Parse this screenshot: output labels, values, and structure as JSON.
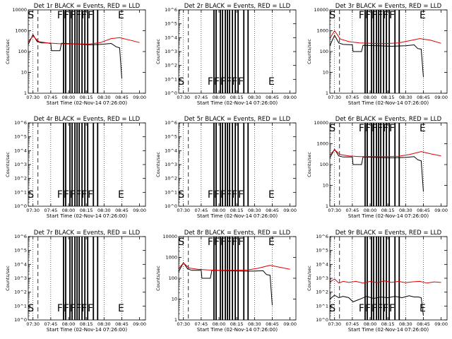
{
  "chart_data": [
    {
      "type": "line",
      "panel": "1r",
      "title": "Det 1r BLACK = Events, RED = LLD",
      "xlabel": "Start Time (02-Nov-14 07:26:00)",
      "ylabel": "Counts/sec",
      "yscale": "log",
      "ylim": [
        1,
        10000
      ],
      "y_ticks": [
        "1",
        "10",
        "100",
        "1000",
        "10000"
      ],
      "x_ticks": [
        "07:30",
        "07:45",
        "08:00",
        "08:15",
        "08:30",
        "08:45",
        "09:00"
      ],
      "markers": [
        "S",
        "F",
        "F",
        "F",
        "F",
        "F",
        "F",
        "E"
      ],
      "series": [
        {
          "color": "#000000",
          "points": [
            [
              7.43,
              210
            ],
            [
              7.5,
              650
            ],
            [
              7.56,
              300
            ],
            [
              7.62,
              260
            ],
            [
              7.7,
              260
            ],
            [
              7.75,
              240
            ],
            [
              7.76,
              110
            ],
            [
              7.88,
              110
            ],
            [
              7.9,
              250
            ],
            [
              8.1,
              230
            ],
            [
              8.3,
              210
            ],
            [
              8.45,
              220
            ],
            [
              8.6,
              245
            ],
            [
              8.67,
              170
            ],
            [
              8.72,
              150
            ],
            [
              8.75,
              5
            ]
          ]
        },
        {
          "color": "#e00000",
          "points": [
            [
              7.43,
              290
            ],
            [
              7.5,
              560
            ],
            [
              7.58,
              300
            ],
            [
              7.7,
              260
            ],
            [
              7.85,
              240
            ],
            [
              8.0,
              230
            ],
            [
              8.15,
              230
            ],
            [
              8.3,
              230
            ],
            [
              8.45,
              270
            ],
            [
              8.6,
              420
            ],
            [
              8.72,
              460
            ],
            [
              8.9,
              330
            ],
            [
              9.0,
              270
            ]
          ]
        }
      ]
    },
    {
      "type": "line",
      "panel": "2r",
      "title": "Det 2r BLACK = Events, RED = LLD",
      "xlabel": "Start Time (02-Nov-14 07:26:00)",
      "ylabel": "Counts/sec",
      "yscale": "log",
      "ylim": [
        1,
        1000000
      ],
      "y_ticks": [
        "10^0",
        "10^1",
        "10^2",
        "10^3",
        "10^4",
        "10^5",
        "10^6"
      ],
      "x_ticks": [
        "07:30",
        "07:45",
        "08:00",
        "08:15",
        "08:30",
        "08:45",
        "09:00"
      ],
      "markers": [
        "S",
        "F",
        "F",
        "F",
        "F",
        "F",
        "F",
        "E"
      ],
      "series": []
    },
    {
      "type": "line",
      "panel": "3r",
      "title": "Det 3r BLACK = Events, RED = LLD",
      "xlabel": "Start Time (02-Nov-14 07:26:00)",
      "ylabel": "Counts/sec",
      "yscale": "log",
      "ylim": [
        1,
        10000
      ],
      "y_ticks": [
        "1",
        "10",
        "100",
        "1000",
        "10000"
      ],
      "x_ticks": [
        "07:30",
        "07:45",
        "08:00",
        "08:15",
        "08:30",
        "08:45",
        "09:00"
      ],
      "markers": [
        "S",
        "F",
        "F",
        "F",
        "F",
        "F",
        "F",
        "E"
      ],
      "series": [
        {
          "color": "#000000",
          "points": [
            [
              7.43,
              180
            ],
            [
              7.5,
              600
            ],
            [
              7.56,
              260
            ],
            [
              7.62,
              220
            ],
            [
              7.75,
              210
            ],
            [
              7.76,
              100
            ],
            [
              7.88,
              100
            ],
            [
              7.9,
              200
            ],
            [
              8.1,
              190
            ],
            [
              8.3,
              180
            ],
            [
              8.5,
              190
            ],
            [
              8.62,
              210
            ],
            [
              8.67,
              140
            ],
            [
              8.72,
              130
            ],
            [
              8.75,
              6
            ]
          ]
        },
        {
          "color": "#e00000",
          "points": [
            [
              7.43,
              400
            ],
            [
              7.5,
              1000
            ],
            [
              7.58,
              400
            ],
            [
              7.7,
              300
            ],
            [
              7.85,
              260
            ],
            [
              8.0,
              250
            ],
            [
              8.2,
              240
            ],
            [
              8.4,
              260
            ],
            [
              8.55,
              330
            ],
            [
              8.7,
              420
            ],
            [
              8.85,
              350
            ],
            [
              9.0,
              250
            ]
          ]
        }
      ]
    },
    {
      "type": "line",
      "panel": "4r",
      "title": "Det 4r BLACK = Events, RED = LLD",
      "xlabel": "Start Time (02-Nov-14 07:26:00)",
      "ylabel": "Counts/sec",
      "yscale": "log",
      "ylim": [
        1,
        1000000
      ],
      "y_ticks": [
        "10^0",
        "10^1",
        "10^2",
        "10^3",
        "10^4",
        "10^5",
        "10^6"
      ],
      "x_ticks": [
        "07:30",
        "07:45",
        "08:00",
        "08:15",
        "08:30",
        "08:45",
        "09:00"
      ],
      "markers": [
        "S",
        "F",
        "F",
        "F",
        "F",
        "F",
        "F",
        "E"
      ],
      "series": []
    },
    {
      "type": "line",
      "panel": "5r",
      "title": "Det 5r BLACK = Events, RED = LLD",
      "xlabel": "Start Time (02-Nov-14 07:26:00)",
      "ylabel": "Counts/sec",
      "yscale": "log",
      "ylim": [
        1,
        1000000
      ],
      "y_ticks": [
        "10^0",
        "10^1",
        "10^2",
        "10^3",
        "10^4",
        "10^5",
        "10^6"
      ],
      "x_ticks": [
        "07:30",
        "07:45",
        "08:00",
        "08:15",
        "08:30",
        "08:45",
        "09:00"
      ],
      "markers": [
        "S",
        "F",
        "F",
        "F",
        "F",
        "F",
        "F",
        "E"
      ],
      "series": []
    },
    {
      "type": "line",
      "panel": "6r",
      "title": "Det 6r BLACK = Events, RED = LLD",
      "xlabel": "Start Time (02-Nov-14 07:26:00)",
      "ylabel": "Counts/sec",
      "yscale": "log",
      "ylim": [
        1,
        10000
      ],
      "y_ticks": [
        "1",
        "10",
        "100",
        "1000",
        "10000"
      ],
      "x_ticks": [
        "07:30",
        "07:45",
        "08:00",
        "08:15",
        "08:30",
        "08:45",
        "09:00"
      ],
      "markers": [
        "S",
        "F",
        "F",
        "F",
        "F",
        "F",
        "F",
        "E"
      ],
      "series": [
        {
          "color": "#000000",
          "points": [
            [
              7.43,
              200
            ],
            [
              7.5,
              550
            ],
            [
              7.56,
              260
            ],
            [
              7.62,
              230
            ],
            [
              7.75,
              230
            ],
            [
              7.76,
              100
            ],
            [
              7.88,
              100
            ],
            [
              7.9,
              230
            ],
            [
              8.1,
              220
            ],
            [
              8.3,
              210
            ],
            [
              8.5,
              220
            ],
            [
              8.62,
              240
            ],
            [
              8.67,
              170
            ],
            [
              8.72,
              150
            ],
            [
              8.75,
              5
            ]
          ]
        },
        {
          "color": "#e00000",
          "points": [
            [
              7.43,
              280
            ],
            [
              7.5,
              520
            ],
            [
              7.58,
              300
            ],
            [
              7.7,
              260
            ],
            [
              7.85,
              240
            ],
            [
              8.0,
              240
            ],
            [
              8.2,
              240
            ],
            [
              8.4,
              250
            ],
            [
              8.55,
              300
            ],
            [
              8.72,
              420
            ],
            [
              8.85,
              330
            ],
            [
              9.0,
              260
            ]
          ]
        }
      ]
    },
    {
      "type": "line",
      "panel": "7r",
      "title": "Det 7r BLACK = Events, RED = LLD",
      "xlabel": "Start Time (02-Nov-14 07:26:00)",
      "ylabel": "Counts/sec",
      "yscale": "log",
      "ylim": [
        1,
        1000000
      ],
      "y_ticks": [
        "10^0",
        "10^1",
        "10^2",
        "10^3",
        "10^4",
        "10^5",
        "10^6"
      ],
      "x_ticks": [
        "07:30",
        "07:45",
        "08:00",
        "08:15",
        "08:30",
        "08:45",
        "09:00"
      ],
      "markers": [
        "S",
        "F",
        "F",
        "F",
        "F",
        "F",
        "F",
        "E"
      ],
      "series": []
    },
    {
      "type": "line",
      "panel": "8r",
      "title": "Det 8r BLACK = Events, RED = LLD",
      "xlabel": "Start Time (02-Nov-14 07:26:00)",
      "ylabel": "Counts/sec",
      "yscale": "log",
      "ylim": [
        1,
        10000
      ],
      "y_ticks": [
        "1",
        "10",
        "100",
        "1000",
        "10000"
      ],
      "x_ticks": [
        "07:30",
        "07:45",
        "08:00",
        "08:15",
        "08:30",
        "08:45",
        "09:00"
      ],
      "markers": [
        "S",
        "F",
        "F",
        "F",
        "F",
        "F",
        "F",
        "E"
      ],
      "series": [
        {
          "color": "#000000",
          "points": [
            [
              7.43,
              200
            ],
            [
              7.5,
              560
            ],
            [
              7.56,
              280
            ],
            [
              7.62,
              240
            ],
            [
              7.75,
              240
            ],
            [
              7.76,
              100
            ],
            [
              7.88,
              100
            ],
            [
              7.9,
              240
            ],
            [
              8.1,
              230
            ],
            [
              8.3,
              220
            ],
            [
              8.5,
              220
            ],
            [
              8.62,
              230
            ],
            [
              8.67,
              150
            ],
            [
              8.72,
              140
            ],
            [
              8.75,
              5
            ]
          ]
        },
        {
          "color": "#e00000",
          "points": [
            [
              7.43,
              280
            ],
            [
              7.5,
              540
            ],
            [
              7.58,
              310
            ],
            [
              7.7,
              270
            ],
            [
              7.85,
              250
            ],
            [
              8.0,
              240
            ],
            [
              8.2,
              240
            ],
            [
              8.4,
              250
            ],
            [
              8.55,
              300
            ],
            [
              8.72,
              420
            ],
            [
              8.85,
              340
            ],
            [
              9.0,
              270
            ]
          ]
        }
      ]
    },
    {
      "type": "line",
      "panel": "9r",
      "title": "Det 9r BLACK = Events, RED = LLD",
      "xlabel": "Start Time (02-Nov-14 07:26:00)",
      "ylabel": "Counts/sec",
      "yscale": "log",
      "ylim": [
        1,
        1000000
      ],
      "y_ticks": [
        "10^0",
        "10^1",
        "10^2",
        "10^3",
        "10^4",
        "10^5",
        "10^6"
      ],
      "x_ticks": [
        "07:30",
        "07:45",
        "08:00",
        "08:15",
        "08:30",
        "08:45",
        "09:00"
      ],
      "markers": [
        "S",
        "F",
        "F",
        "F",
        "F",
        "F",
        "F",
        "E"
      ],
      "series": [
        {
          "color": "#000000",
          "points": [
            [
              7.43,
              30
            ],
            [
              7.5,
              60
            ],
            [
              7.56,
              40
            ],
            [
              7.62,
              50
            ],
            [
              7.7,
              40
            ],
            [
              7.76,
              20
            ],
            [
              7.85,
              30
            ],
            [
              7.95,
              50
            ],
            [
              8.05,
              35
            ],
            [
              8.15,
              45
            ],
            [
              8.25,
              40
            ],
            [
              8.35,
              50
            ],
            [
              8.45,
              40
            ],
            [
              8.55,
              55
            ],
            [
              8.62,
              45
            ],
            [
              8.68,
              45
            ],
            [
              8.72,
              40
            ],
            [
              8.75,
              2
            ]
          ]
        },
        {
          "color": "#e00000",
          "points": [
            [
              7.43,
              500
            ],
            [
              7.5,
              900
            ],
            [
              7.56,
              450
            ],
            [
              7.62,
              600
            ],
            [
              7.7,
              500
            ],
            [
              7.8,
              600
            ],
            [
              7.9,
              450
            ],
            [
              8.0,
              600
            ],
            [
              8.1,
              480
            ],
            [
              8.2,
              650
            ],
            [
              8.3,
              500
            ],
            [
              8.4,
              600
            ],
            [
              8.5,
              480
            ],
            [
              8.6,
              560
            ],
            [
              8.7,
              600
            ],
            [
              8.8,
              450
            ],
            [
              8.9,
              550
            ],
            [
              9.0,
              500
            ]
          ]
        }
      ]
    }
  ]
}
